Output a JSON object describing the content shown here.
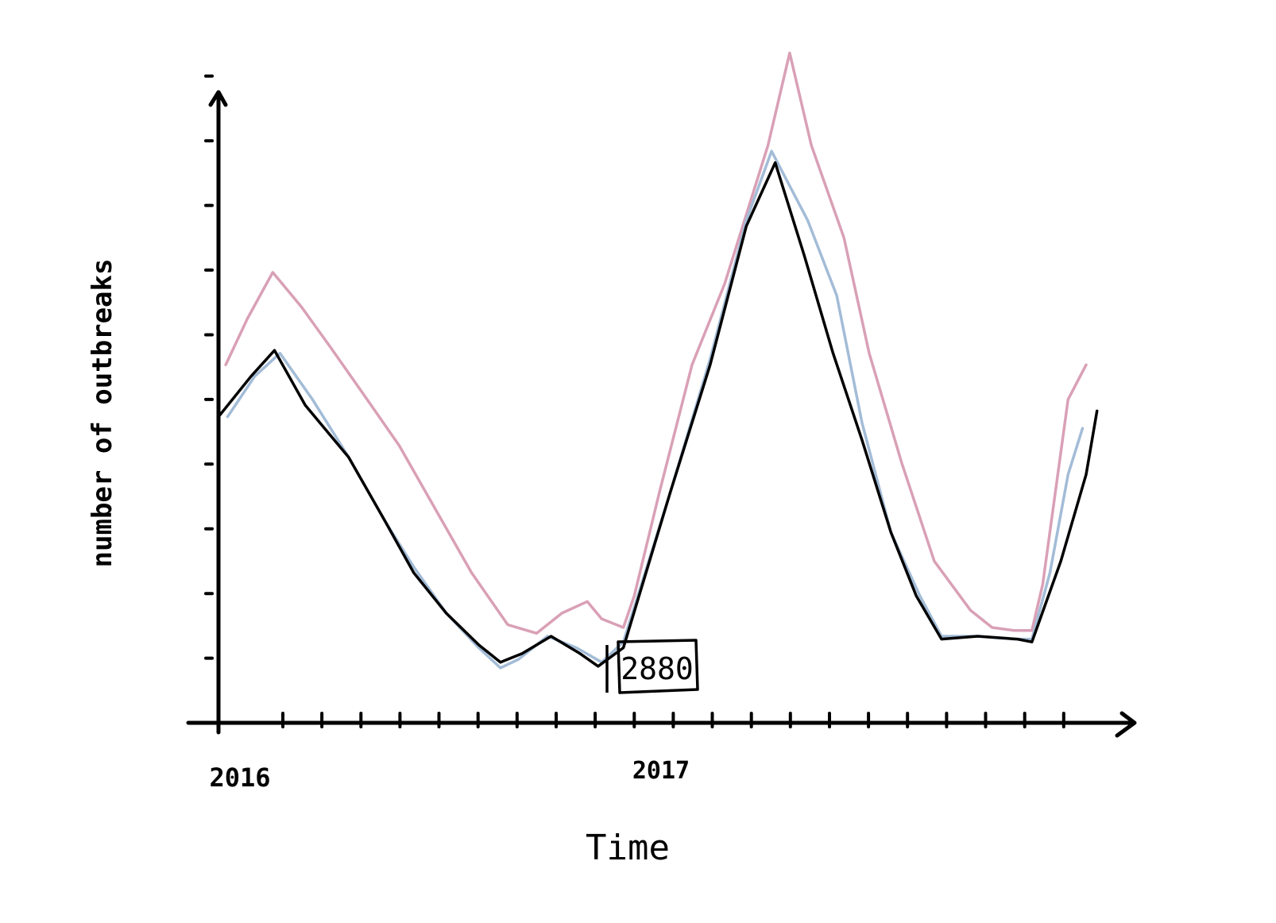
{
  "chart_data": {
    "type": "line",
    "title": "",
    "xlabel": "Time",
    "ylabel": "number of outbreaks",
    "x_tick_labels": [
      "2016",
      "2017"
    ],
    "x_tick_positions": [
      0,
      12
    ],
    "x_tick_count": 22,
    "x_range": [
      0,
      23.5
    ],
    "y_range": [
      0,
      11
    ],
    "y_tick_count": 10,
    "annotation": {
      "text": "2880",
      "x": 10.6,
      "y": 1.15
    },
    "grid": false,
    "legend": "none",
    "series": [
      {
        "color": "#d9a0b6",
        "points": [
          [
            0.2,
            6.2
          ],
          [
            0.8,
            7.0
          ],
          [
            1.5,
            7.8
          ],
          [
            2.3,
            7.2
          ],
          [
            3.1,
            6.5
          ],
          [
            4.0,
            5.7
          ],
          [
            5.0,
            4.8
          ],
          [
            6.0,
            3.7
          ],
          [
            7.0,
            2.6
          ],
          [
            8.0,
            1.7
          ],
          [
            8.8,
            1.55
          ],
          [
            9.5,
            1.9
          ],
          [
            10.2,
            2.1
          ],
          [
            10.6,
            1.8
          ],
          [
            11.2,
            1.65
          ],
          [
            11.5,
            2.2
          ],
          [
            12.2,
            4.0
          ],
          [
            13.1,
            6.2
          ],
          [
            14.0,
            7.6
          ],
          [
            15.2,
            10.0
          ],
          [
            15.8,
            11.6
          ],
          [
            16.4,
            10.0
          ],
          [
            17.3,
            8.4
          ],
          [
            18.0,
            6.4
          ],
          [
            18.9,
            4.5
          ],
          [
            19.8,
            2.8
          ],
          [
            20.8,
            1.95
          ],
          [
            21.4,
            1.65
          ],
          [
            22.0,
            1.6
          ],
          [
            22.5,
            1.6
          ],
          [
            22.8,
            2.4
          ],
          [
            23.5,
            5.6
          ],
          [
            24.0,
            6.2
          ]
        ]
      },
      {
        "color": "#a3bcd7",
        "points": [
          [
            0.25,
            5.3
          ],
          [
            1.0,
            6.0
          ],
          [
            1.7,
            6.4
          ],
          [
            2.6,
            5.6
          ],
          [
            3.6,
            4.6
          ],
          [
            4.6,
            3.5
          ],
          [
            5.4,
            2.7
          ],
          [
            6.3,
            1.9
          ],
          [
            7.2,
            1.3
          ],
          [
            7.8,
            0.95
          ],
          [
            8.3,
            1.1
          ],
          [
            9.1,
            1.5
          ],
          [
            9.9,
            1.3
          ],
          [
            10.6,
            1.05
          ],
          [
            11.2,
            1.4
          ],
          [
            12.5,
            4.0
          ],
          [
            13.6,
            6.3
          ],
          [
            14.6,
            8.7
          ],
          [
            15.3,
            9.9
          ],
          [
            16.3,
            8.7
          ],
          [
            17.1,
            7.4
          ],
          [
            17.8,
            5.2
          ],
          [
            18.6,
            3.3
          ],
          [
            19.4,
            2.2
          ],
          [
            20.0,
            1.5
          ],
          [
            21.0,
            1.5
          ],
          [
            22.0,
            1.45
          ],
          [
            22.5,
            1.45
          ],
          [
            23.0,
            2.6
          ],
          [
            23.5,
            4.3
          ],
          [
            23.9,
            5.1
          ]
        ]
      },
      {
        "color": "#000000",
        "points": [
          [
            0.0,
            5.3
          ],
          [
            0.9,
            6.0
          ],
          [
            1.55,
            6.45
          ],
          [
            2.4,
            5.5
          ],
          [
            3.6,
            4.6
          ],
          [
            4.6,
            3.5
          ],
          [
            5.4,
            2.6
          ],
          [
            6.3,
            1.9
          ],
          [
            7.2,
            1.35
          ],
          [
            7.8,
            1.05
          ],
          [
            8.4,
            1.2
          ],
          [
            9.2,
            1.5
          ],
          [
            10.0,
            1.2
          ],
          [
            10.5,
            0.98
          ],
          [
            11.2,
            1.3
          ],
          [
            12.5,
            4.0
          ],
          [
            13.6,
            6.2
          ],
          [
            14.6,
            8.6
          ],
          [
            15.4,
            9.7
          ],
          [
            16.2,
            8.1
          ],
          [
            17.0,
            6.4
          ],
          [
            17.8,
            4.9
          ],
          [
            18.6,
            3.3
          ],
          [
            19.3,
            2.2
          ],
          [
            20.0,
            1.45
          ],
          [
            21.0,
            1.5
          ],
          [
            22.1,
            1.45
          ],
          [
            22.5,
            1.4
          ],
          [
            23.3,
            2.8
          ],
          [
            24.0,
            4.3
          ],
          [
            24.3,
            5.4
          ]
        ]
      }
    ]
  }
}
